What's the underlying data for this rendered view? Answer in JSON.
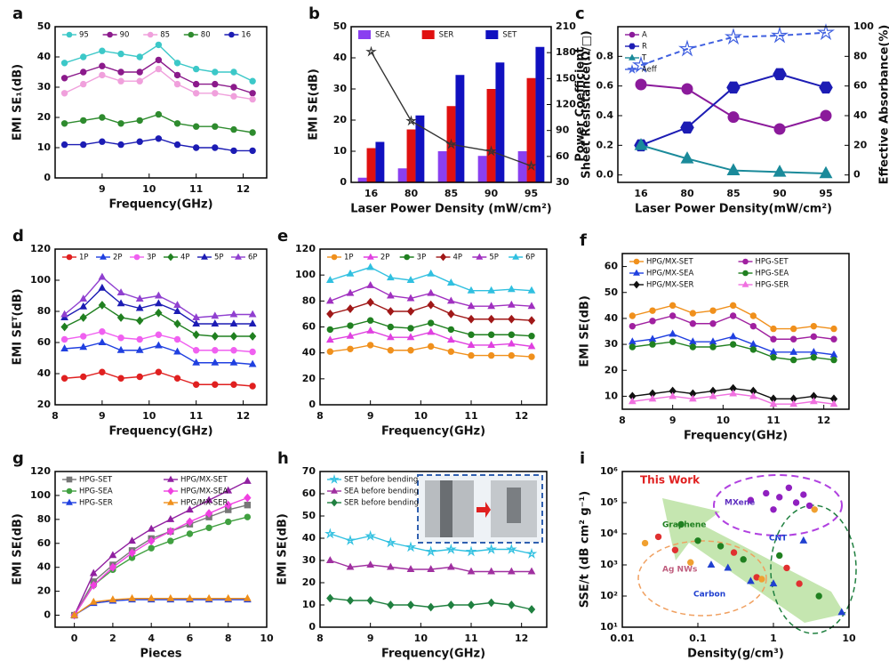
{
  "chart_data": [
    {
      "type": "line",
      "panel": "a",
      "xlabel": "Frequency(GHz)",
      "ylabel": "EMI SE₁(dB)",
      "xlim": [
        8,
        12.5
      ],
      "xticks": [
        9,
        10,
        11,
        12
      ],
      "ylim": [
        0,
        50
      ],
      "yticks": [
        0,
        10,
        20,
        30,
        40,
        50
      ],
      "x": [
        8.2,
        8.6,
        9.0,
        9.4,
        9.8,
        10.2,
        10.6,
        11.0,
        11.4,
        11.8,
        12.2
      ],
      "series": [
        {
          "name": "95",
          "color": "#3cc8c8",
          "marker": "circle",
          "values": [
            38,
            40,
            42,
            41,
            40,
            44,
            38,
            36,
            35,
            35,
            32
          ]
        },
        {
          "name": "90",
          "color": "#8b1a8b",
          "marker": "circle",
          "values": [
            33,
            35,
            37,
            35,
            35,
            39,
            34,
            31,
            31,
            30,
            28
          ]
        },
        {
          "name": "85",
          "color": "#f0a0dc",
          "marker": "circle",
          "values": [
            28,
            31,
            34,
            32,
            32,
            36,
            31,
            28,
            28,
            27,
            26
          ]
        },
        {
          "name": "80",
          "color": "#2e8b2e",
          "marker": "circle",
          "values": [
            18,
            19,
            20,
            18,
            19,
            21,
            18,
            17,
            17,
            16,
            15
          ]
        },
        {
          "name": "16",
          "color": "#1c1cb4",
          "marker": "circle",
          "values": [
            11,
            11,
            12,
            11,
            12,
            13,
            11,
            10,
            10,
            9,
            9
          ]
        }
      ]
    },
    {
      "type": "bar",
      "panel": "b",
      "xlabel": "Laser Power Density (mW/cm²)",
      "ylabel": "EMI SE(dB)",
      "y2label": "Sheet Resistance(Ω/□)",
      "categories": [
        "16",
        "80",
        "85",
        "90",
        "95"
      ],
      "ylim": [
        0,
        50
      ],
      "yticks": [
        0,
        10,
        20,
        30,
        40,
        50
      ],
      "y2lim": [
        30,
        210
      ],
      "y2ticks": [
        30,
        60,
        90,
        120,
        150,
        180,
        210
      ],
      "series": [
        {
          "name": "SEA",
          "color": "#8a3ff0",
          "values": [
            1.5,
            4.5,
            10,
            8.5,
            10
          ]
        },
        {
          "name": "SER",
          "color": "#e01010",
          "values": [
            11,
            17,
            24.5,
            30,
            33.5
          ]
        },
        {
          "name": "SET",
          "color": "#1010c0",
          "values": [
            13,
            21.5,
            34.5,
            38.5,
            43.5
          ]
        },
        {
          "color": "#333333",
          "marker": "star",
          "axis": "y2",
          "values": [
            181,
            101,
            74,
            66,
            49
          ]
        }
      ]
    },
    {
      "type": "line",
      "panel": "c",
      "xlabel": "Laser Power Density(mW/cm²)",
      "ylabel": "Power Coefficient",
      "y2label": "Effective Absorbance(%)",
      "categories": [
        "16",
        "80",
        "85",
        "90",
        "95"
      ],
      "ylim": [
        -0.05,
        1.0
      ],
      "yticks": [
        {
          "value": 0,
          "label": "0.0"
        },
        0.2,
        0.4,
        0.6,
        0.8
      ],
      "y2lim": [
        -5,
        100
      ],
      "y2ticks": [
        0,
        20,
        40,
        60,
        80,
        100
      ],
      "series": [
        {
          "name": "A",
          "color": "#8b1a9b",
          "marker": "circle",
          "values": [
            0.61,
            0.58,
            0.39,
            0.31,
            0.4
          ]
        },
        {
          "name": "R",
          "color": "#1c1cb4",
          "marker": "hexagon",
          "values": [
            0.2,
            0.32,
            0.59,
            0.68,
            0.59
          ]
        },
        {
          "name": "T",
          "color": "#1a8a9a",
          "marker": "triangle",
          "values": [
            0.2,
            0.11,
            0.03,
            0.02,
            0.01
          ]
        },
        {
          "name": "Aeff",
          "color": "#4060e0",
          "marker": "star",
          "axis": "y2",
          "linestyle": "dashed",
          "values": [
            74,
            85,
            93,
            94,
            96
          ]
        }
      ]
    },
    {
      "type": "line",
      "panel": "d",
      "xlabel": "Frequency(GHz)",
      "ylabel": "EMI SEᵀ(dB)",
      "xlim": [
        8,
        12.5
      ],
      "xticks": [
        8,
        9,
        10,
        11,
        12
      ],
      "ylim": [
        20,
        120
      ],
      "yticks": [
        20,
        40,
        60,
        80,
        100,
        120
      ],
      "x": [
        8.2,
        8.6,
        9.0,
        9.4,
        9.8,
        10.2,
        10.6,
        11.0,
        11.4,
        11.8,
        12.2
      ],
      "series": [
        {
          "name": "1P",
          "color": "#e02020",
          "marker": "circle",
          "values": [
            37,
            38,
            41,
            37,
            38,
            41,
            37,
            33,
            33,
            33,
            32
          ]
        },
        {
          "name": "2P",
          "color": "#2040e0",
          "marker": "triangle",
          "values": [
            56,
            57,
            60,
            55,
            55,
            58,
            54,
            47,
            47,
            47,
            46
          ]
        },
        {
          "name": "3P",
          "color": "#f060f0",
          "marker": "circle",
          "values": [
            62,
            64,
            67,
            63,
            62,
            65,
            62,
            55,
            55,
            55,
            54
          ]
        },
        {
          "name": "4P",
          "color": "#208020",
          "marker": "diamond",
          "values": [
            70,
            76,
            84,
            76,
            74,
            79,
            72,
            65,
            64,
            64,
            64
          ]
        },
        {
          "name": "5P",
          "color": "#1c1cb4",
          "marker": "triangle",
          "values": [
            76,
            83,
            95,
            85,
            82,
            85,
            80,
            72,
            72,
            72,
            72
          ]
        },
        {
          "name": "6P",
          "color": "#9040d0",
          "marker": "triangle",
          "values": [
            78,
            88,
            102,
            92,
            88,
            90,
            84,
            76,
            77,
            78,
            78
          ]
        }
      ]
    },
    {
      "type": "line",
      "panel": "e",
      "xlabel": "Frequency(GHz)",
      "xlim": [
        8,
        12.5
      ],
      "xticks": [
        8,
        9,
        10,
        11,
        12
      ],
      "ylim": [
        0,
        120
      ],
      "yticks": [
        0,
        20,
        40,
        60,
        80,
        100,
        120
      ],
      "x": [
        8.2,
        8.6,
        9.0,
        9.4,
        9.8,
        10.2,
        10.6,
        11.0,
        11.4,
        11.8,
        12.2
      ],
      "series": [
        {
          "name": "1P",
          "color": "#f0901c",
          "marker": "circle",
          "values": [
            41,
            43,
            46,
            42,
            42,
            45,
            41,
            38,
            38,
            38,
            37
          ]
        },
        {
          "name": "2P",
          "color": "#e040e0",
          "marker": "triangle",
          "values": [
            50,
            53,
            57,
            52,
            52,
            56,
            50,
            46,
            46,
            47,
            45
          ]
        },
        {
          "name": "3P",
          "color": "#208020",
          "marker": "circle",
          "values": [
            58,
            61,
            65,
            60,
            59,
            63,
            58,
            54,
            54,
            54,
            53
          ]
        },
        {
          "name": "4P",
          "color": "#a01818",
          "marker": "diamond",
          "values": [
            70,
            74,
            79,
            72,
            72,
            77,
            70,
            66,
            66,
            66,
            65
          ]
        },
        {
          "name": "5P",
          "color": "#a030c0",
          "marker": "triangle",
          "values": [
            80,
            86,
            92,
            84,
            82,
            86,
            80,
            76,
            76,
            77,
            76
          ]
        },
        {
          "name": "6P",
          "color": "#30c0e0",
          "marker": "triangle",
          "values": [
            96,
            101,
            106,
            98,
            96,
            101,
            94,
            88,
            88,
            89,
            88
          ]
        }
      ]
    },
    {
      "type": "line",
      "panel": "f",
      "xlabel": "Frequency(GHz)",
      "ylabel": "EMI SE(dB)",
      "xlim": [
        8,
        12.5
      ],
      "xticks": [
        8,
        9,
        10,
        11,
        12
      ],
      "ylim": [
        5,
        65
      ],
      "yticks": [
        10,
        20,
        30,
        40,
        50,
        60
      ],
      "x": [
        8.2,
        8.6,
        9.0,
        9.4,
        9.8,
        10.2,
        10.6,
        11.0,
        11.4,
        11.8,
        12.2
      ],
      "series": [
        {
          "name": "HPG/MX-SET",
          "color": "#f0901c",
          "marker": "circle",
          "values": [
            41,
            43,
            45,
            42,
            43,
            45,
            41,
            36,
            36,
            37,
            36
          ]
        },
        {
          "name": "HPG-SET",
          "color": "#a020a0",
          "marker": "circle",
          "values": [
            37,
            39,
            41,
            38,
            38,
            41,
            37,
            32,
            32,
            33,
            32
          ]
        },
        {
          "name": "HPG/MX-SEA",
          "color": "#2040e0",
          "marker": "triangle",
          "values": [
            31,
            32,
            34,
            31,
            31,
            33,
            30,
            27,
            27,
            27,
            26
          ]
        },
        {
          "name": "HPG-SEA",
          "color": "#208020",
          "marker": "circle",
          "values": [
            29,
            30,
            31,
            29,
            29,
            30,
            28,
            25,
            24,
            25,
            24
          ]
        },
        {
          "name": "HPG/MX-SER",
          "color": "#111111",
          "marker": "diamond",
          "values": [
            10,
            11,
            12,
            11,
            12,
            13,
            12,
            9,
            9,
            10,
            9
          ]
        },
        {
          "name": "HPG-SER",
          "color": "#f070e0",
          "marker": "triangle",
          "values": [
            8,
            9,
            10,
            9,
            10,
            11,
            10,
            7,
            7,
            8,
            7
          ]
        }
      ]
    },
    {
      "type": "line",
      "panel": "g",
      "xlabel": "Pieces",
      "ylabel": "EMI SE(dB)",
      "xlim": [
        -1,
        10
      ],
      "xticks": [
        0,
        2,
        4,
        6,
        8,
        10
      ],
      "ylim": [
        -10,
        120
      ],
      "yticks": [
        0,
        20,
        40,
        60,
        80,
        100,
        120
      ],
      "x": [
        0,
        1,
        2,
        3,
        4,
        5,
        6,
        7,
        8,
        9
      ],
      "series": [
        {
          "name": "HPG-SET",
          "color": "#777777",
          "marker": "square",
          "values": [
            0,
            28,
            42,
            54,
            64,
            70,
            76,
            82,
            88,
            92
          ]
        },
        {
          "name": "HPG/MX-SET",
          "color": "#9020a0",
          "marker": "triangle",
          "values": [
            0,
            35,
            50,
            62,
            72,
            80,
            88,
            96,
            104,
            112
          ]
        },
        {
          "name": "HPG-SEA",
          "color": "#40a040",
          "marker": "circle",
          "values": [
            0,
            25,
            38,
            48,
            56,
            62,
            68,
            73,
            78,
            82
          ]
        },
        {
          "name": "HPG/MX-SEA",
          "color": "#f040e0",
          "marker": "diamond",
          "values": [
            0,
            25,
            40,
            52,
            62,
            70,
            78,
            85,
            92,
            98
          ]
        },
        {
          "name": "HPG-SER",
          "color": "#2040e0",
          "marker": "triangle",
          "values": [
            0,
            10,
            12,
            13,
            13,
            13,
            13,
            13,
            13,
            13
          ]
        },
        {
          "name": "HPG/MX-SER",
          "color": "#f0901c",
          "marker": "triangle",
          "values": [
            0,
            11,
            13,
            14,
            14,
            14,
            14,
            14,
            14,
            14
          ]
        }
      ]
    },
    {
      "type": "line",
      "panel": "h",
      "xlabel": "Frequency(GHz)",
      "ylabel": "EMI SE(dB)",
      "xlim": [
        8,
        12.5
      ],
      "xticks": [
        8,
        9,
        10,
        11,
        12
      ],
      "ylim": [
        0,
        70
      ],
      "yticks": [
        0,
        10,
        20,
        30,
        40,
        50,
        60,
        70
      ],
      "x": [
        8.2,
        8.6,
        9.0,
        9.4,
        9.8,
        10.2,
        10.6,
        11.0,
        11.4,
        11.8,
        12.2
      ],
      "series": [
        {
          "name": "SET before bending",
          "color": "#30c0e0",
          "marker": "star",
          "values": [
            42,
            39,
            41,
            38,
            36,
            34,
            35,
            34,
            35,
            35,
            33
          ]
        },
        {
          "name": "SEA before bending",
          "color": "#a030a0",
          "marker": "triangle",
          "values": [
            30,
            27,
            28,
            27,
            26,
            26,
            27,
            25,
            25,
            25,
            25
          ]
        },
        {
          "name": "SER before bending",
          "color": "#208040",
          "marker": "diamond",
          "values": [
            13,
            12,
            12,
            10,
            10,
            9,
            10,
            10,
            11,
            10,
            8
          ]
        }
      ]
    },
    {
      "type": "scatter",
      "panel": "i",
      "xlabel": "Density(g/cm³)",
      "ylabel": "SSE/t (dB cm² g⁻¹)",
      "xscale": "log",
      "yscale": "log",
      "xlim": [
        0.01,
        10
      ],
      "xticks": [
        0.01,
        0.1,
        1,
        10
      ],
      "ylim": [
        10,
        1000000
      ],
      "yticks": [
        {
          "value": 10,
          "label": "10¹"
        },
        {
          "value": 100,
          "label": "10²"
        },
        {
          "value": 1000,
          "label": "10³"
        },
        {
          "value": 10000,
          "label": "10⁴"
        },
        {
          "value": 100000,
          "label": "10⁵"
        },
        {
          "value": 1000000,
          "label": "10⁶"
        }
      ],
      "annotations": [
        "This Work",
        "MXene",
        "Graphene",
        "Carbon",
        "Ag NWs",
        "CNT"
      ],
      "series": [
        {
          "color": "#9020c0",
          "marker": "circle",
          "x": [
            0.5,
            0.8,
            1.2,
            1.6,
            2.0,
            2.5,
            3.0,
            1.0
          ],
          "values": [
            120000,
            200000,
            150000,
            300000,
            100000,
            180000,
            80000,
            60000
          ]
        },
        {
          "color": "#e03030",
          "marker": "circle",
          "x": [
            0.03,
            0.05,
            0.3,
            0.6,
            1.5,
            2.2
          ],
          "values": [
            8000,
            3000,
            2500,
            400,
            800,
            250
          ]
        },
        {
          "color": "#208020",
          "marker": "circle",
          "x": [
            0.06,
            0.1,
            0.2,
            0.4,
            1.2,
            4.0
          ],
          "values": [
            20000,
            6000,
            4000,
            1500,
            2000,
            100
          ]
        },
        {
          "color": "#2040d0",
          "marker": "triangle",
          "x": [
            0.15,
            0.25,
            0.5,
            1.0,
            2.5,
            8.0
          ],
          "values": [
            1000,
            800,
            300,
            250,
            6000,
            30
          ]
        },
        {
          "color": "#f0a030",
          "marker": "circle",
          "x": [
            0.02,
            0.08,
            0.7,
            3.5
          ],
          "values": [
            5000,
            1200,
            350,
            60000
          ]
        }
      ]
    }
  ]
}
